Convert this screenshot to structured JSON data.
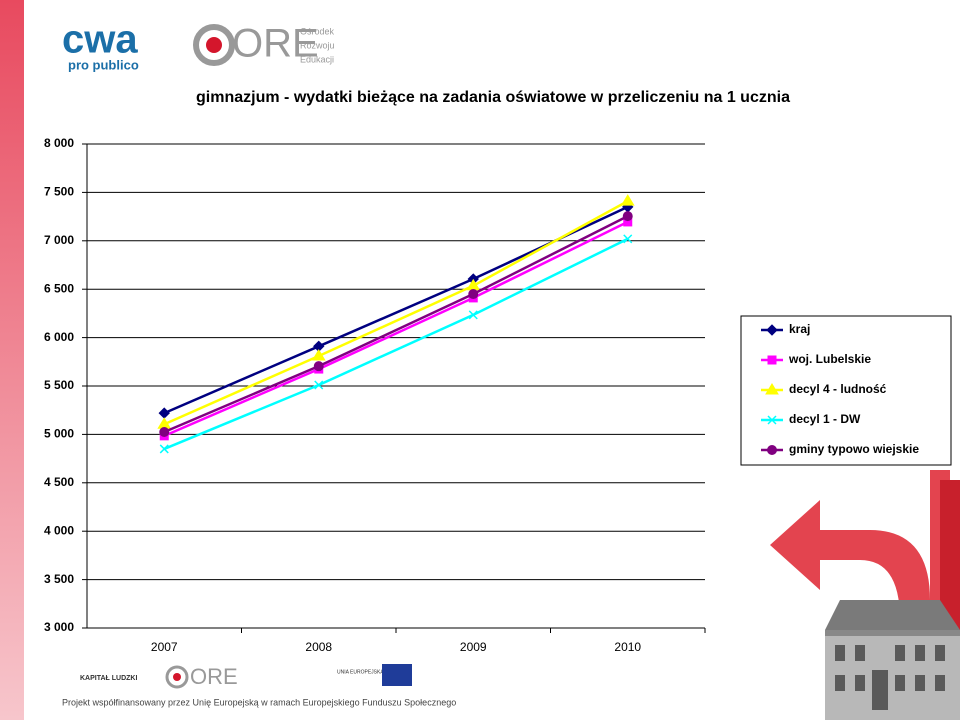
{
  "logos": {
    "cwa": "cwa",
    "cwa_sub": "pro publico",
    "ore": "ORE",
    "ore_sub": [
      "Ośrodek",
      "Rozwoju",
      "Edukacji"
    ],
    "footer": "Projekt współfinansowany przez Unię Europejską w ramach Europejskiego Funduszu Społecznego",
    "kl": "KAPITAŁ LUDZKI",
    "ue": "UNIA EUROPEJSKA"
  },
  "chart_data": {
    "type": "line",
    "title": "gimnazjum - wydatki bieżące na zadania oświatowe w przeliczeniu na 1 ucznia",
    "categories": [
      "2007",
      "2008",
      "2009",
      "2010"
    ],
    "series": [
      {
        "name": "kraj",
        "color": "#000080",
        "marker": "diamond",
        "values": [
          5220,
          5910,
          6605,
          7350
        ]
      },
      {
        "name": "woj. Lubelskie",
        "color": "#ff00ff",
        "marker": "square",
        "values": [
          4985,
          5675,
          6410,
          7195
        ]
      },
      {
        "name": "decyl 4 - ludność",
        "color": "#ffff00",
        "marker": "triangle",
        "values": [
          5105,
          5810,
          6535,
          7410
        ]
      },
      {
        "name": "decyl 1 - DW",
        "color": "#00ffff",
        "marker": "x",
        "values": [
          4850,
          5510,
          6235,
          7020
        ]
      },
      {
        "name": "gminy typowo wiejskie",
        "color": "#800080",
        "marker": "circle",
        "values": [
          5025,
          5705,
          6450,
          7255
        ]
      }
    ],
    "ylim": [
      3000,
      8000
    ],
    "yticks": [
      {
        "value": 3000,
        "label": "3 000"
      },
      {
        "value": 3500,
        "label": "3 500"
      },
      {
        "value": 4000,
        "label": "4 000"
      },
      {
        "value": 4500,
        "label": "4 500"
      },
      {
        "value": 5000,
        "label": "5 000"
      },
      {
        "value": 5500,
        "label": "5 500"
      },
      {
        "value": 6000,
        "label": "6 000"
      },
      {
        "value": 6500,
        "label": "6 500"
      },
      {
        "value": 7000,
        "label": "7 000"
      },
      {
        "value": 7500,
        "label": "7 500"
      },
      {
        "value": 8000,
        "label": "8 000"
      }
    ],
    "grid": true,
    "legend": "right"
  }
}
